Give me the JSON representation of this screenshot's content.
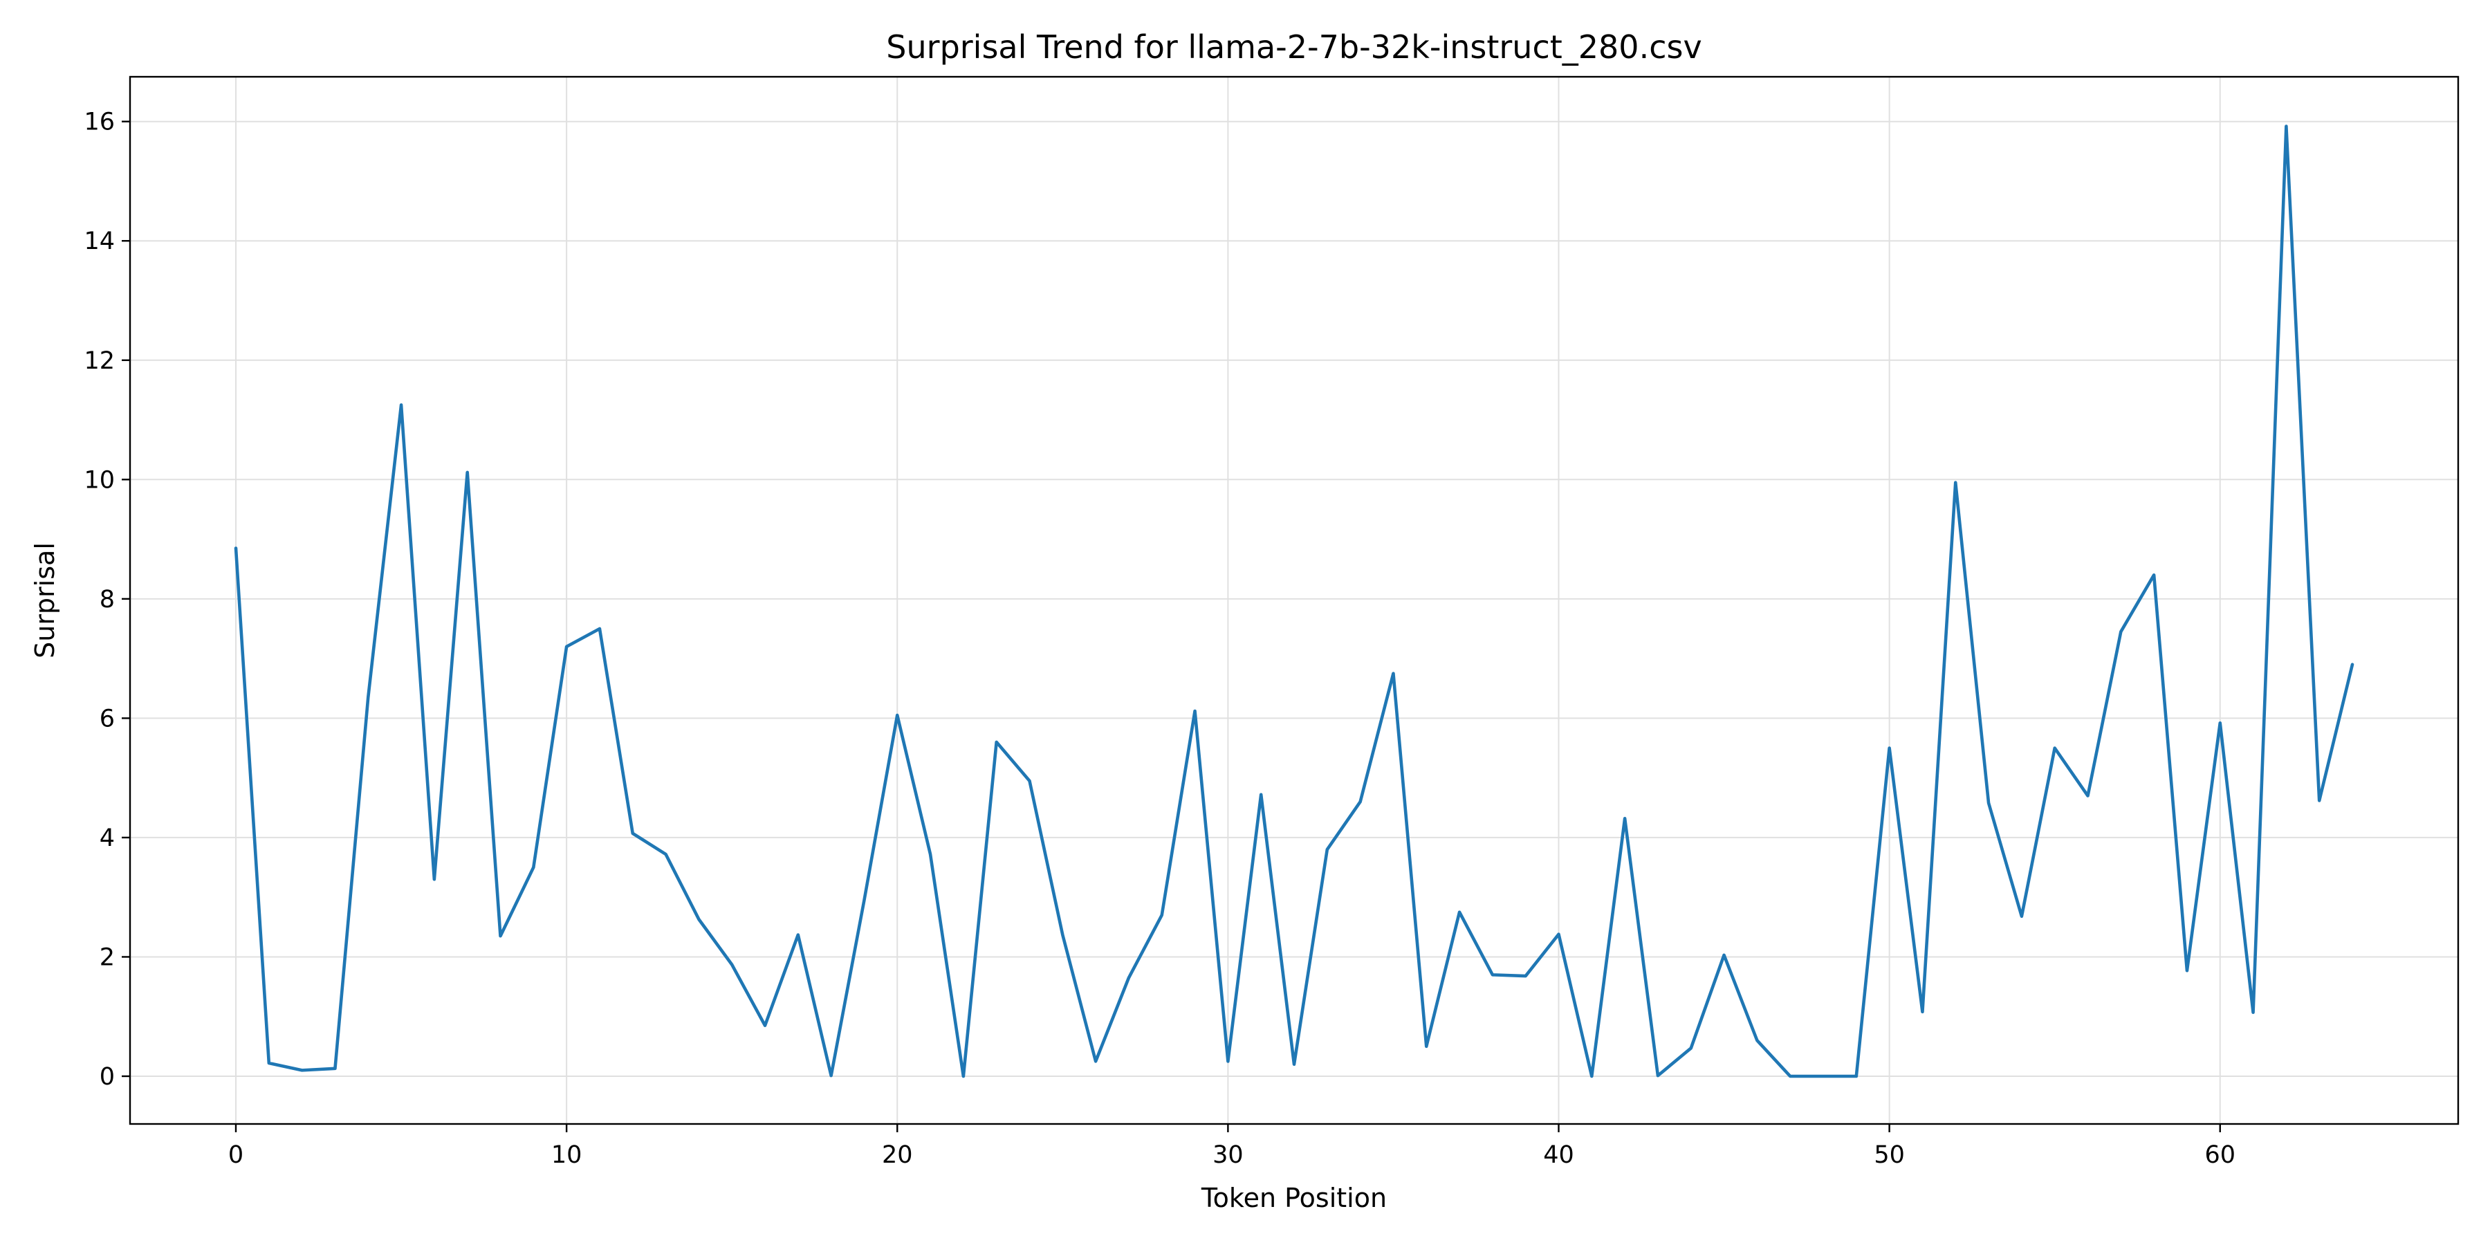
{
  "chart_data": {
    "type": "line",
    "title": "Surprisal Trend for llama-2-7b-32k-instruct_280.csv",
    "xlabel": "Token Position",
    "ylabel": "Surprisal",
    "xlim": [
      -3.2,
      67.2
    ],
    "ylim": [
      -0.8,
      16.75
    ],
    "xticks": [
      0,
      10,
      20,
      30,
      40,
      50,
      60
    ],
    "yticks": [
      0,
      2,
      4,
      6,
      8,
      10,
      12,
      14,
      16
    ],
    "grid": true,
    "line_color": "#1f77b4",
    "series": [
      {
        "x": [
          0,
          1,
          2,
          3,
          4,
          5,
          6,
          7,
          8,
          9,
          10,
          11,
          12,
          13,
          14,
          15,
          16,
          17,
          18,
          19,
          20,
          21,
          22,
          23,
          24,
          25,
          26,
          27,
          28,
          29,
          30,
          31,
          32,
          33,
          34,
          35,
          36,
          37,
          38,
          39,
          40,
          41,
          42,
          43,
          44,
          45,
          46,
          47,
          48,
          49,
          50,
          51,
          52,
          53,
          54,
          55,
          56,
          57,
          58,
          59,
          60,
          61,
          62,
          63,
          64
        ],
        "values": [
          8.85,
          0.22,
          0.1,
          0.13,
          6.35,
          11.25,
          3.3,
          10.12,
          2.35,
          3.5,
          7.2,
          7.5,
          4.07,
          3.72,
          2.63,
          1.87,
          0.85,
          2.37,
          0.01,
          2.95,
          6.05,
          3.72,
          0.0,
          5.6,
          4.95,
          2.37,
          0.25,
          1.65,
          2.7,
          6.12,
          0.25,
          4.72,
          0.2,
          3.8,
          4.6,
          6.75,
          0.5,
          2.75,
          1.7,
          1.68,
          2.38,
          0.0,
          4.32,
          0.01,
          0.47,
          2.03,
          0.6,
          0.0,
          0.0,
          0.0,
          5.5,
          1.08,
          9.95,
          4.58,
          2.68,
          5.5,
          4.7,
          7.45,
          8.4,
          1.77,
          5.92,
          1.07,
          15.92,
          4.62,
          6.9
        ]
      }
    ]
  }
}
